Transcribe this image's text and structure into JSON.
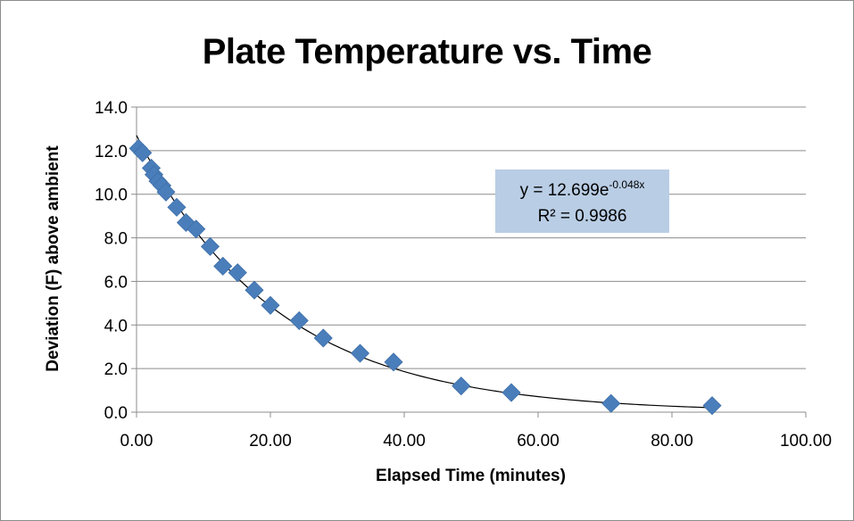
{
  "chart_data": {
    "type": "scatter",
    "title": "Plate Temperature vs. Time",
    "xlabel": "Elapsed Time (minutes)",
    "ylabel": "Deviation (F) above ambient",
    "xlim": [
      0,
      100
    ],
    "ylim": [
      0,
      14
    ],
    "x_ticks": [
      "0.00",
      "20.00",
      "40.00",
      "60.00",
      "80.00",
      "100.00"
    ],
    "y_ticks": [
      "0.0",
      "2.0",
      "4.0",
      "6.0",
      "8.0",
      "10.0",
      "12.0",
      "14.0"
    ],
    "grid": "horizontal",
    "legend": "none",
    "marker": "diamond",
    "marker_color": "#4a7ebb",
    "series": [
      {
        "x": [
          0.3,
          0.9,
          2.2,
          2.6,
          3.2,
          3.8,
          4.4,
          6.0,
          7.4,
          8.9,
          11.0,
          12.9,
          15.1,
          17.6,
          20.0,
          24.3,
          27.9,
          33.4,
          38.4,
          48.5,
          56.0,
          70.9,
          86.0
        ],
        "y": [
          12.1,
          11.9,
          11.2,
          10.9,
          10.6,
          10.4,
          10.1,
          9.4,
          8.7,
          8.4,
          7.6,
          6.7,
          6.4,
          5.6,
          4.9,
          4.2,
          3.4,
          2.7,
          2.3,
          1.2,
          0.9,
          0.4,
          0.3
        ]
      }
    ],
    "trendline": {
      "type": "exponential",
      "a": 12.699,
      "b": -0.048,
      "x_range": [
        0,
        86
      ],
      "color": "#000000",
      "equation_prefix": "y = 12.699e",
      "equation_exponent": "-0.048x",
      "r_squared_text": "R² = 0.9986",
      "label_background": "#b9cde5"
    }
  }
}
